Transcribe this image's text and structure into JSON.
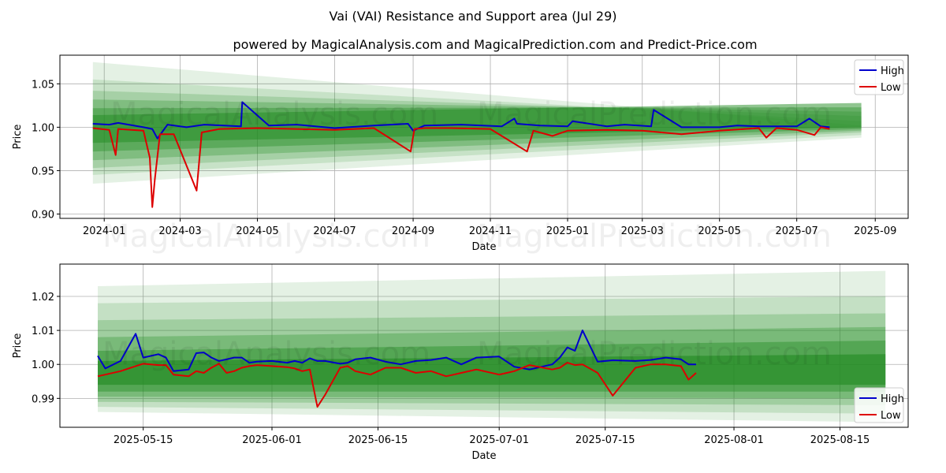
{
  "figure": {
    "title": "Vai (VAI) Resistance and Support area (Jul 29)",
    "subtitle": "powered by MagicalAnalysis.com and MagicalPrediction.com and Predict-Price.com",
    "watermarks": [
      "MagicalAnalysis.com",
      "MagicalPrediction.com"
    ],
    "colors": {
      "high": "#0000cc",
      "low": "#dd0000",
      "band": "#228b22"
    }
  },
  "chart_data": [
    {
      "type": "line",
      "xlabel": "Date",
      "ylabel": "Price",
      "x_ticks": [
        "2024-01",
        "2024-03",
        "2024-05",
        "2024-07",
        "2024-09",
        "2024-11",
        "2025-01",
        "2025-03",
        "2025-05",
        "2025-07",
        "2025-09"
      ],
      "y_ticks": [
        "0.90",
        "0.95",
        "1.00",
        "1.05"
      ],
      "xlim": [
        "2023-11-27",
        "2025-09-27"
      ],
      "ylim": [
        0.895,
        1.083
      ],
      "grid": true,
      "legend": "top-right",
      "legend_entries": [
        "High",
        "Low"
      ],
      "bands": {
        "start": "2023-12-23",
        "end": "2025-08-21",
        "upper_start": [
          1.075,
          1.055,
          1.042,
          1.032,
          1.022,
          1.014
        ],
        "upper_end": [
          1.002,
          1.007,
          1.013,
          1.018,
          1.023,
          1.028
        ],
        "lower_start": [
          0.935,
          0.945,
          0.953,
          0.962,
          0.972,
          0.982
        ],
        "lower_end": [
          0.988,
          0.991,
          0.994,
          0.996,
          0.998,
          1.0
        ],
        "opacities": [
          0.12,
          0.15,
          0.2,
          0.28,
          0.38,
          0.5
        ]
      },
      "series": [
        {
          "name": "High",
          "x": [
            "2023-12-23",
            "2024-01-05",
            "2024-01-12",
            "2024-02-01",
            "2024-02-08",
            "2024-02-12",
            "2024-02-20",
            "2024-03-06",
            "2024-03-20",
            "2024-04-18",
            "2024-04-19",
            "2024-05-10",
            "2024-06-01",
            "2024-07-01",
            "2024-08-01",
            "2024-08-28",
            "2024-09-01",
            "2024-09-10",
            "2024-10-09",
            "2024-11-10",
            "2024-11-20",
            "2024-11-22",
            "2024-12-10",
            "2025-01-01",
            "2025-01-05",
            "2025-02-01",
            "2025-02-15",
            "2025-03-08",
            "2025-03-10",
            "2025-04-01",
            "2025-05-01",
            "2025-05-15",
            "2025-06-01",
            "2025-07-01",
            "2025-07-11",
            "2025-07-20",
            "2025-07-27"
          ],
          "values": [
            1.004,
            1.003,
            1.005,
            1.0,
            0.998,
            0.987,
            1.003,
            1.0,
            1.003,
            1.001,
            1.029,
            1.002,
            1.003,
            0.999,
            1.002,
            1.004,
            0.996,
            1.002,
            1.003,
            1.001,
            1.01,
            1.004,
            1.002,
            1.001,
            1.007,
            1.001,
            1.003,
            1.001,
            1.02,
            1.0,
            1.0,
            1.002,
            1.001,
            1.001,
            1.01,
            1.001,
            1.0
          ]
        },
        {
          "name": "Low",
          "x": [
            "2023-12-23",
            "2024-01-05",
            "2024-01-10",
            "2024-01-12",
            "2024-02-01",
            "2024-02-06",
            "2024-02-08",
            "2024-02-10",
            "2024-02-14",
            "2024-02-25",
            "2024-03-14",
            "2024-03-18",
            "2024-04-01",
            "2024-05-01",
            "2024-06-01",
            "2024-07-01",
            "2024-08-01",
            "2024-08-30",
            "2024-09-02",
            "2024-09-10",
            "2024-10-01",
            "2024-11-01",
            "2024-11-30",
            "2024-12-05",
            "2024-12-20",
            "2025-01-01",
            "2025-02-01",
            "2025-03-01",
            "2025-04-01",
            "2025-05-01",
            "2025-06-01",
            "2025-06-07",
            "2025-06-15",
            "2025-07-01",
            "2025-07-15",
            "2025-07-20",
            "2025-07-27"
          ],
          "values": [
            0.999,
            0.997,
            0.968,
            0.998,
            0.996,
            0.965,
            0.908,
            0.94,
            0.992,
            0.992,
            0.927,
            0.994,
            0.998,
            0.999,
            0.998,
            0.997,
            0.999,
            0.972,
            0.998,
            0.999,
            0.999,
            0.998,
            0.972,
            0.996,
            0.99,
            0.996,
            0.997,
            0.996,
            0.992,
            0.996,
            0.999,
            0.988,
            0.999,
            0.997,
            0.991,
            1.0,
            0.998
          ]
        }
      ]
    },
    {
      "type": "line",
      "xlabel": "Date",
      "ylabel": "Price",
      "x_ticks": [
        "2025-05-15",
        "2025-06-01",
        "2025-06-15",
        "2025-07-01",
        "2025-07-15",
        "2025-08-01",
        "2025-08-15"
      ],
      "y_ticks": [
        "0.99",
        "1.00",
        "1.01",
        "1.02"
      ],
      "xlim": [
        "2025-05-04",
        "2025-08-24"
      ],
      "ylim": [
        0.9815,
        1.0295
      ],
      "grid": true,
      "legend": "bottom-right",
      "legend_entries": [
        "High",
        "Low"
      ],
      "bands": {
        "start": "2025-05-09",
        "end": "2025-08-21",
        "upper_start": [
          1.023,
          1.018,
          1.013,
          1.008,
          1.004,
          1.001
        ],
        "upper_end": [
          1.0275,
          1.02,
          1.015,
          1.011,
          1.007,
          1.003
        ],
        "lower_start": [
          0.986,
          0.9875,
          0.989,
          0.9905,
          0.992,
          0.994
        ],
        "lower_end": [
          0.983,
          0.9855,
          0.988,
          0.99,
          0.992,
          0.994
        ],
        "opacities": [
          0.12,
          0.16,
          0.22,
          0.3,
          0.42,
          0.6
        ]
      },
      "series": [
        {
          "name": "High",
          "x": [
            "2025-05-09",
            "2025-05-10",
            "2025-05-12",
            "2025-05-14",
            "2025-05-15",
            "2025-05-17",
            "2025-05-18",
            "2025-05-19",
            "2025-05-21",
            "2025-05-22",
            "2025-05-23",
            "2025-05-24",
            "2025-05-25",
            "2025-05-26",
            "2025-05-27",
            "2025-05-28",
            "2025-05-29",
            "2025-05-30",
            "2025-06-01",
            "2025-06-03",
            "2025-06-04",
            "2025-06-05",
            "2025-06-06",
            "2025-06-07",
            "2025-06-08",
            "2025-06-10",
            "2025-06-11",
            "2025-06-12",
            "2025-06-14",
            "2025-06-16",
            "2025-06-18",
            "2025-06-20",
            "2025-06-22",
            "2025-06-24",
            "2025-06-25",
            "2025-06-26",
            "2025-06-28",
            "2025-07-01",
            "2025-07-03",
            "2025-07-05",
            "2025-07-08",
            "2025-07-09",
            "2025-07-10",
            "2025-07-11",
            "2025-07-12",
            "2025-07-14",
            "2025-07-16",
            "2025-07-19",
            "2025-07-21",
            "2025-07-23",
            "2025-07-25",
            "2025-07-26",
            "2025-07-27"
          ],
          "values": [
            1.0025,
            0.9988,
            1.001,
            1.009,
            1.002,
            1.003,
            1.002,
            0.998,
            0.9985,
            1.0033,
            1.0035,
            1.002,
            1.001,
            1.0015,
            1.002,
            1.002,
            1.0005,
            1.0008,
            1.001,
            1.0005,
            1.001,
            1.0005,
            1.0018,
            1.001,
            1.001,
            1.0002,
            1.0005,
            1.0015,
            1.002,
            1.0008,
            1.0,
            1.001,
            1.0013,
            1.002,
            1.001,
            1.0,
            1.002,
            1.0023,
            0.9993,
            0.9985,
            1.0,
            1.002,
            1.005,
            1.004,
            1.01,
            1.0008,
            1.0012,
            1.001,
            1.0013,
            1.002,
            1.0015,
            1.0,
            1.0
          ]
        },
        {
          "name": "Low",
          "x": [
            "2025-05-09",
            "2025-05-10",
            "2025-05-12",
            "2025-05-14",
            "2025-05-15",
            "2025-05-17",
            "2025-05-18",
            "2025-05-19",
            "2025-05-21",
            "2025-05-22",
            "2025-05-23",
            "2025-05-24",
            "2025-05-25",
            "2025-05-26",
            "2025-05-27",
            "2025-05-28",
            "2025-05-29",
            "2025-05-30",
            "2025-06-01",
            "2025-06-03",
            "2025-06-04",
            "2025-06-05",
            "2025-06-06",
            "2025-06-07",
            "2025-06-08",
            "2025-06-10",
            "2025-06-11",
            "2025-06-12",
            "2025-06-14",
            "2025-06-16",
            "2025-06-18",
            "2025-06-20",
            "2025-06-22",
            "2025-06-24",
            "2025-06-25",
            "2025-06-26",
            "2025-06-28",
            "2025-07-01",
            "2025-07-03",
            "2025-07-05",
            "2025-07-08",
            "2025-07-09",
            "2025-07-10",
            "2025-07-11",
            "2025-07-12",
            "2025-07-14",
            "2025-07-16",
            "2025-07-19",
            "2025-07-21",
            "2025-07-23",
            "2025-07-25",
            "2025-07-26",
            "2025-07-27"
          ],
          "values": [
            0.9965,
            0.997,
            0.998,
            0.9995,
            1.0002,
            0.9998,
            0.9998,
            0.997,
            0.9965,
            0.998,
            0.9975,
            0.999,
            1.0002,
            0.9975,
            0.998,
            0.999,
            0.9995,
            0.9998,
            0.9995,
            0.9992,
            0.9988,
            0.998,
            0.9985,
            0.9875,
            0.991,
            0.999,
            0.9995,
            0.998,
            0.997,
            0.999,
            0.999,
            0.9975,
            0.998,
            0.9965,
            0.997,
            0.9975,
            0.9985,
            0.997,
            0.998,
            0.9998,
            0.9985,
            0.999,
            1.0005,
            0.9998,
            1.0,
            0.9975,
            0.9908,
            0.999,
            1.0,
            1.0,
            0.9995,
            0.9955,
            0.9975
          ]
        }
      ]
    }
  ]
}
